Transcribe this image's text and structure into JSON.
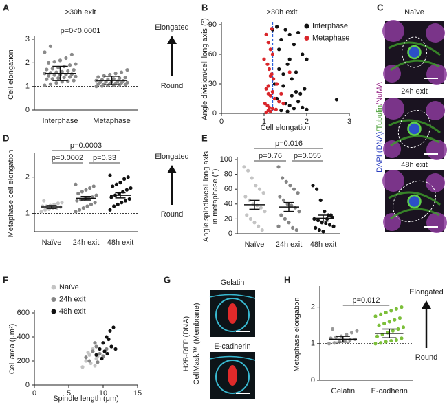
{
  "chart_data": [
    {
      "panel": "A",
      "type": "strip",
      "title": ">30h exit",
      "subtitle": "p=0<0.0001",
      "ylabel": "Cell elongation",
      "categories": [
        "Interphase",
        "Metaphase"
      ],
      "colors": [
        "#8a8a8a",
        "#8a8a8a"
      ],
      "values": [
        [
          1.05,
          1.1,
          1.15,
          1.2,
          1.22,
          1.25,
          1.3,
          1.32,
          1.35,
          1.38,
          1.4,
          1.42,
          1.45,
          1.48,
          1.5,
          1.5,
          1.52,
          1.55,
          1.58,
          1.6,
          1.62,
          1.65,
          1.7,
          1.72,
          1.75,
          1.8,
          1.85,
          1.9,
          1.95,
          2.0,
          2.05,
          2.1,
          2.2,
          2.35,
          2.45,
          2.7
        ],
        [
          1.0,
          1.02,
          1.04,
          1.05,
          1.07,
          1.08,
          1.1,
          1.1,
          1.12,
          1.13,
          1.15,
          1.16,
          1.18,
          1.2,
          1.2,
          1.22,
          1.24,
          1.25,
          1.28,
          1.3,
          1.32,
          1.35,
          1.38,
          1.4,
          1.45,
          1.5,
          1.55,
          1.6,
          1.7
        ]
      ],
      "means": [
        1.55,
        1.25
      ],
      "errors": [
        0.3,
        0.18
      ],
      "ylim": [
        0,
        3
      ],
      "yticks": [
        0,
        1,
        2,
        3
      ],
      "reference_line": 1,
      "arrow_labels": [
        "Elongated",
        "Round"
      ]
    },
    {
      "panel": "B",
      "type": "scatter",
      "title": ">30h exit",
      "xlabel": "Cell elongation",
      "ylabel": "Angle  division/cell long axis (°)",
      "series": [
        {
          "name": "Interphase",
          "color": "#111111",
          "x": [
            1.3,
            1.4,
            1.5,
            1.6,
            1.7,
            1.8,
            1.9,
            2.0,
            1.35,
            1.45,
            1.55,
            1.65,
            1.75,
            1.85,
            1.95,
            1.25,
            1.3,
            1.5,
            1.6,
            1.7,
            1.8,
            1.4,
            1.55,
            1.65,
            1.9,
            2.0,
            1.35,
            1.45,
            1.75,
            2.7,
            1.2,
            1.6
          ],
          "values": [
            88,
            75,
            85,
            80,
            70,
            82,
            60,
            55,
            45,
            40,
            50,
            35,
            42,
            20,
            25,
            30,
            15,
            10,
            8,
            5,
            12,
            3,
            2,
            18,
            6,
            4,
            65,
            28,
            22,
            14,
            85,
            55
          ]
        },
        {
          "name": "Metaphase",
          "color": "#d9262b",
          "x": [
            1.05,
            1.1,
            1.15,
            1.2,
            1.0,
            1.08,
            1.12,
            1.18,
            1.22,
            1.3,
            1.05,
            1.1,
            1.15,
            1.25,
            1.35,
            1.02,
            1.08,
            1.12,
            1.2,
            1.28,
            1.1,
            1.15,
            1.05,
            1.4,
            1.18,
            1.6,
            1.45,
            1.1,
            1.2,
            1.15
          ],
          "values": [
            80,
            72,
            65,
            60,
            55,
            50,
            45,
            40,
            35,
            30,
            25,
            20,
            18,
            15,
            12,
            10,
            8,
            6,
            5,
            4,
            3,
            2,
            1,
            20,
            86,
            42,
            10,
            28,
            22,
            38
          ]
        }
      ],
      "xlim": [
        0,
        3
      ],
      "xticks": [
        0,
        1,
        2,
        3
      ],
      "ylim": [
        0,
        90
      ],
      "yticks": [
        0,
        30,
        60,
        90
      ],
      "vline": 1.2,
      "vline_color": "#2b5fd9",
      "legend": "top-right"
    },
    {
      "panel": "D",
      "type": "strip",
      "ylabel": "Metaphase cell elongation",
      "categories": [
        "Naïve",
        "24h exit",
        "48h exit"
      ],
      "colors": [
        "#c4c4c4",
        "#858585",
        "#111111"
      ],
      "values": [
        [
          1.05,
          1.1,
          1.12,
          1.15,
          1.15,
          1.18,
          1.2,
          1.2,
          1.22,
          1.25,
          1.28,
          1.3,
          1.35
        ],
        [
          1.05,
          1.1,
          1.15,
          1.2,
          1.25,
          1.3,
          1.35,
          1.38,
          1.4,
          1.42,
          1.45,
          1.5,
          1.55,
          1.6,
          1.65,
          1.7,
          1.75,
          1.8
        ],
        [
          1.1,
          1.2,
          1.25,
          1.3,
          1.35,
          1.4,
          1.45,
          1.5,
          1.55,
          1.6,
          1.65,
          1.7,
          1.75,
          1.8,
          1.85,
          1.95,
          2.0,
          2.05
        ]
      ],
      "means": [
        1.18,
        1.42,
        1.5
      ],
      "errors": [
        0.04,
        0.05,
        0.07
      ],
      "ylim": [
        0.5,
        2.6
      ],
      "yticks": [
        1,
        2
      ],
      "reference_line": 1,
      "arrow_labels": [
        "Elongated",
        "Round"
      ],
      "comparisons": [
        {
          "label": "p=0.0003",
          "groups": [
            "Naïve",
            "48h exit"
          ]
        },
        {
          "label": "p=0.0002",
          "groups": [
            "Naïve",
            "24h exit"
          ]
        },
        {
          "label": "p=0.33",
          "groups": [
            "24h exit",
            "48h exit"
          ]
        }
      ]
    },
    {
      "panel": "E",
      "type": "strip",
      "ylabel": [
        "Angle  spindle/cell long axis",
        "in metaphase (°)"
      ],
      "categories": [
        "Naïve",
        "24h exit",
        "48h exit"
      ],
      "colors": [
        "#c4c4c4",
        "#858585",
        "#111111"
      ],
      "values": [
        [
          90,
          85,
          75,
          65,
          60,
          55,
          50,
          45,
          40,
          38,
          35,
          30,
          25,
          20,
          15,
          10,
          5
        ],
        [
          90,
          75,
          70,
          65,
          60,
          55,
          50,
          45,
          40,
          38,
          35,
          30,
          25,
          20,
          15,
          8,
          5,
          10
        ],
        [
          65,
          60,
          45,
          30,
          25,
          22,
          20,
          18,
          15,
          14,
          12,
          10,
          8,
          5,
          3,
          20,
          25
        ]
      ],
      "means": [
        39,
        36,
        21
      ],
      "errors": [
        6,
        6,
        4
      ],
      "ylim": [
        0,
        100
      ],
      "yticks": [
        0,
        20,
        40,
        60,
        80,
        100
      ],
      "comparisons": [
        {
          "label": "p=0.016",
          "groups": [
            "Naïve",
            "48h exit"
          ]
        },
        {
          "label": "p=0.76",
          "groups": [
            "Naïve",
            "24h exit"
          ]
        },
        {
          "label": "p=0.055",
          "groups": [
            "24h exit",
            "48h exit"
          ]
        }
      ]
    },
    {
      "panel": "F",
      "type": "scatter",
      "xlabel": "Spindle length (μm)",
      "ylabel": "Cell area (μm²)",
      "series": [
        {
          "name": "Naïve",
          "color": "#c4c4c4",
          "x": [
            7,
            7.5,
            8,
            8.2,
            8.5,
            9,
            7.8,
            8.8,
            9.2
          ],
          "values": [
            150,
            200,
            250,
            180,
            300,
            220,
            270,
            160,
            240
          ]
        },
        {
          "name": "24h exit",
          "color": "#858585",
          "x": [
            8,
            8.5,
            9,
            9.5,
            10,
            8.8,
            9.2,
            10.5,
            7.5
          ],
          "values": [
            200,
            280,
            320,
            260,
            240,
            350,
            190,
            300,
            230
          ]
        },
        {
          "name": "48h exit",
          "color": "#111111",
          "x": [
            9,
            9.5,
            10,
            10.5,
            11,
            11.5,
            10.2,
            11.2,
            9.8,
            10.8,
            11.8,
            10.6
          ],
          "values": [
            250,
            300,
            350,
            400,
            450,
            480,
            280,
            320,
            220,
            380,
            300,
            260
          ]
        }
      ],
      "xlim": [
        0,
        15
      ],
      "xticks": [
        0,
        5,
        10,
        15
      ],
      "ylim": [
        0,
        600
      ],
      "yticks": [
        0,
        200,
        400,
        600
      ],
      "legend": "top-left"
    },
    {
      "panel": "H",
      "type": "strip",
      "ylabel": "Metaphase elongation",
      "categories": [
        "Gelatin",
        "E-cadherin"
      ],
      "colors": [
        "#9a9a9a",
        "#7cbf3a"
      ],
      "values": [
        [
          1.0,
          1.02,
          1.05,
          1.08,
          1.1,
          1.12,
          1.15,
          1.18,
          1.2,
          1.25,
          1.3,
          1.35,
          1.4
        ],
        [
          1.0,
          1.02,
          1.05,
          1.08,
          1.1,
          1.15,
          1.2,
          1.25,
          1.3,
          1.35,
          1.4,
          1.45,
          1.5,
          1.55,
          1.6,
          1.65,
          1.7,
          1.75,
          1.8,
          1.85,
          1.9,
          1.95,
          2.0
        ]
      ],
      "means": [
        1.12,
        1.28
      ],
      "errors": [
        0.08,
        0.12
      ],
      "ylim": [
        0,
        2.5
      ],
      "yticks": [
        0,
        1,
        2
      ],
      "reference_line": 1,
      "arrow_labels": [
        "Elongated",
        "Round"
      ],
      "comparisons": [
        {
          "label": "p=0.012",
          "groups": [
            "Gelatin",
            "E-cadherin"
          ]
        }
      ]
    }
  ],
  "images": [
    {
      "panel": "C",
      "labels": [
        "Naïve",
        "24h exit",
        "48h exit"
      ],
      "side_label": [
        {
          "text": "DAPI (DNA)",
          "color": "#2b3fbf"
        },
        {
          "text": "/Tubulin",
          "color": "#3f9a2a"
        },
        {
          "text": "/NuMA",
          "color": "#9a2a8a"
        }
      ]
    },
    {
      "panel": "G",
      "labels": [
        "Gelatin",
        "E-cadherin"
      ],
      "side_label": [
        {
          "text": "H2B-RFP (DNA)",
          "color": "#d9262b"
        },
        {
          "text": "CellMask™ (Membrane)",
          "color": "#1fa8c8"
        }
      ]
    }
  ]
}
